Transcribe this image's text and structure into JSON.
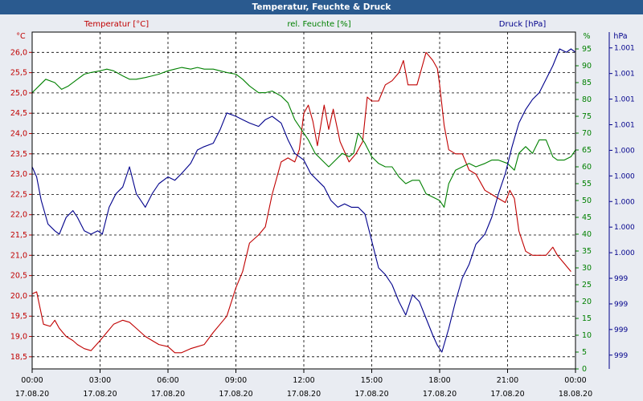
{
  "chart_data": {
    "type": "line",
    "title": "Temperatur, Feuchte & Druck",
    "x": {
      "ticks": [
        {
          "time": "00:00",
          "date": "17.08.20"
        },
        {
          "time": "03:00",
          "date": "17.08.20"
        },
        {
          "time": "06:00",
          "date": "17.08.20"
        },
        {
          "time": "09:00",
          "date": "17.08.20"
        },
        {
          "time": "12:00",
          "date": "17.08.20"
        },
        {
          "time": "15:00",
          "date": "17.08.20"
        },
        {
          "time": "18:00",
          "date": "17.08.20"
        },
        {
          "time": "21:00",
          "date": "17.08.20"
        },
        {
          "time": "00:00",
          "date": "18.08.20"
        }
      ],
      "range_hours": [
        0,
        24
      ]
    },
    "axes": {
      "temperature": {
        "label": "Temperatur [°C]",
        "unit": "°C",
        "color": "#c00000",
        "range": [
          18.2,
          26.5
        ],
        "ticks": [
          "26,0",
          "25,5",
          "25,0",
          "24,5",
          "24,0",
          "23,5",
          "23,0",
          "22,5",
          "22,0",
          "21,5",
          "21,0",
          "20,5",
          "20,0",
          "19,5",
          "19,0",
          "18,5"
        ],
        "tick_values": [
          26.0,
          25.5,
          25.0,
          24.5,
          24.0,
          23.5,
          23.0,
          22.5,
          22.0,
          21.5,
          21.0,
          20.5,
          20.0,
          19.5,
          19.0,
          18.5
        ]
      },
      "humidity": {
        "label": "rel. Feuchte [%]",
        "unit": "%",
        "color": "#008000",
        "range": [
          0,
          100
        ],
        "ticks": [
          "0",
          "5",
          "10",
          "15",
          "20",
          "25",
          "30",
          "35",
          "40",
          "45",
          "50",
          "55",
          "60",
          "65",
          "70",
          "75",
          "80",
          "85",
          "90",
          "95"
        ],
        "tick_values": [
          0,
          5,
          10,
          15,
          20,
          25,
          30,
          35,
          40,
          45,
          50,
          55,
          60,
          65,
          70,
          75,
          80,
          85,
          90,
          95
        ]
      },
      "pressure": {
        "label": "Druck [hPa]",
        "unit": "hPa",
        "color": "#00008b",
        "range": [
          0,
          100
        ],
        "ticks": [
          "1.001",
          "1.001",
          "1.001",
          "1.001",
          "1.000",
          "1.000",
          "1.000",
          "1.000",
          "1.000",
          "999",
          "999",
          "999",
          "999"
        ],
        "tick_values": [
          95.3,
          87.7,
          80.1,
          72.5,
          64.9,
          57.3,
          49.7,
          42.1,
          34.5,
          26.9,
          19.3,
          11.7,
          4.1
        ]
      }
    },
    "series": [
      {
        "name": "Temperatur",
        "axis": "temperature",
        "color": "#c00000",
        "points": [
          [
            0,
            20.05
          ],
          [
            0.2,
            20.1
          ],
          [
            0.5,
            19.3
          ],
          [
            0.8,
            19.25
          ],
          [
            1,
            19.4
          ],
          [
            1.2,
            19.2
          ],
          [
            1.5,
            19.0
          ],
          [
            1.8,
            18.9
          ],
          [
            2.0,
            18.8
          ],
          [
            2.3,
            18.7
          ],
          [
            2.6,
            18.65
          ],
          [
            3.0,
            18.9
          ],
          [
            3.3,
            19.1
          ],
          [
            3.6,
            19.3
          ],
          [
            4.0,
            19.4
          ],
          [
            4.3,
            19.35
          ],
          [
            4.6,
            19.2
          ],
          [
            5.0,
            19.0
          ],
          [
            5.3,
            18.9
          ],
          [
            5.6,
            18.8
          ],
          [
            6.0,
            18.75
          ],
          [
            6.3,
            18.6
          ],
          [
            6.6,
            18.6
          ],
          [
            7.0,
            18.7
          ],
          [
            7.3,
            18.75
          ],
          [
            7.6,
            18.8
          ],
          [
            8.0,
            19.1
          ],
          [
            8.3,
            19.3
          ],
          [
            8.6,
            19.5
          ],
          [
            9.0,
            20.2
          ],
          [
            9.3,
            20.6
          ],
          [
            9.6,
            21.3
          ],
          [
            10.0,
            21.5
          ],
          [
            10.3,
            21.7
          ],
          [
            10.6,
            22.5
          ],
          [
            11.0,
            23.3
          ],
          [
            11.3,
            23.4
          ],
          [
            11.6,
            23.3
          ],
          [
            11.8,
            23.6
          ],
          [
            12.0,
            24.5
          ],
          [
            12.2,
            24.7
          ],
          [
            12.4,
            24.3
          ],
          [
            12.6,
            23.7
          ],
          [
            12.9,
            24.7
          ],
          [
            13.1,
            24.1
          ],
          [
            13.3,
            24.6
          ],
          [
            13.6,
            23.8
          ],
          [
            14.0,
            23.3
          ],
          [
            14.3,
            23.5
          ],
          [
            14.6,
            23.8
          ],
          [
            14.8,
            24.9
          ],
          [
            15.0,
            24.8
          ],
          [
            15.3,
            24.8
          ],
          [
            15.6,
            25.2
          ],
          [
            15.9,
            25.3
          ],
          [
            16.2,
            25.5
          ],
          [
            16.4,
            25.8
          ],
          [
            16.6,
            25.2
          ],
          [
            16.8,
            25.2
          ],
          [
            17.0,
            25.2
          ],
          [
            17.2,
            25.6
          ],
          [
            17.4,
            26.0
          ],
          [
            17.7,
            25.8
          ],
          [
            17.9,
            25.6
          ],
          [
            18.0,
            25.2
          ],
          [
            18.2,
            24.2
          ],
          [
            18.4,
            23.6
          ],
          [
            18.7,
            23.5
          ],
          [
            19.0,
            23.5
          ],
          [
            19.3,
            23.1
          ],
          [
            19.6,
            23.0
          ],
          [
            20.0,
            22.6
          ],
          [
            20.3,
            22.5
          ],
          [
            20.6,
            22.4
          ],
          [
            20.9,
            22.3
          ],
          [
            21.1,
            22.6
          ],
          [
            21.3,
            22.4
          ],
          [
            21.5,
            21.6
          ],
          [
            21.8,
            21.1
          ],
          [
            22.1,
            21.0
          ],
          [
            22.4,
            21.0
          ],
          [
            22.7,
            21.0
          ],
          [
            23.0,
            21.2
          ],
          [
            23.2,
            21.0
          ],
          [
            23.5,
            20.8
          ],
          [
            23.8,
            20.6
          ]
        ]
      },
      {
        "name": "rel. Feuchte",
        "axis": "humidity",
        "color": "#008000",
        "points": [
          [
            0,
            82
          ],
          [
            0.3,
            84
          ],
          [
            0.6,
            86
          ],
          [
            1.0,
            85
          ],
          [
            1.3,
            83
          ],
          [
            1.6,
            84
          ],
          [
            2.0,
            86
          ],
          [
            2.3,
            87.5
          ],
          [
            2.6,
            88
          ],
          [
            3.0,
            88.5
          ],
          [
            3.3,
            89
          ],
          [
            3.6,
            88.5
          ],
          [
            4.0,
            87
          ],
          [
            4.3,
            86
          ],
          [
            4.6,
            86
          ],
          [
            5.0,
            86.5
          ],
          [
            5.3,
            87
          ],
          [
            5.6,
            87.5
          ],
          [
            6.0,
            88.5
          ],
          [
            6.3,
            89
          ],
          [
            6.6,
            89.5
          ],
          [
            7.0,
            89
          ],
          [
            7.3,
            89.5
          ],
          [
            7.6,
            89
          ],
          [
            8.0,
            89
          ],
          [
            8.3,
            88.5
          ],
          [
            8.6,
            88
          ],
          [
            9.0,
            87.5
          ],
          [
            9.3,
            86
          ],
          [
            9.6,
            84
          ],
          [
            10.0,
            82
          ],
          [
            10.3,
            82
          ],
          [
            10.6,
            82.5
          ],
          [
            11.0,
            81
          ],
          [
            11.3,
            79
          ],
          [
            11.6,
            74
          ],
          [
            12.0,
            70
          ],
          [
            12.2,
            68
          ],
          [
            12.5,
            64
          ],
          [
            12.8,
            62
          ],
          [
            13.1,
            60
          ],
          [
            13.4,
            62
          ],
          [
            13.7,
            64
          ],
          [
            14.0,
            63
          ],
          [
            14.2,
            64
          ],
          [
            14.4,
            70
          ],
          [
            14.7,
            67
          ],
          [
            15.0,
            63
          ],
          [
            15.3,
            61
          ],
          [
            15.6,
            60
          ],
          [
            15.9,
            60
          ],
          [
            16.2,
            57
          ],
          [
            16.5,
            55
          ],
          [
            16.8,
            56
          ],
          [
            17.1,
            56
          ],
          [
            17.4,
            52
          ],
          [
            17.7,
            51
          ],
          [
            18.0,
            50
          ],
          [
            18.2,
            48
          ],
          [
            18.4,
            55
          ],
          [
            18.7,
            59
          ],
          [
            19.0,
            60
          ],
          [
            19.3,
            61
          ],
          [
            19.6,
            60
          ],
          [
            20.0,
            61
          ],
          [
            20.3,
            62
          ],
          [
            20.6,
            62
          ],
          [
            21.0,
            61
          ],
          [
            21.3,
            59
          ],
          [
            21.5,
            64
          ],
          [
            21.8,
            66
          ],
          [
            22.1,
            64
          ],
          [
            22.4,
            68
          ],
          [
            22.7,
            68
          ],
          [
            23.0,
            63
          ],
          [
            23.2,
            62
          ],
          [
            23.5,
            62
          ],
          [
            23.8,
            63
          ],
          [
            24.0,
            65
          ]
        ]
      },
      {
        "name": "Druck",
        "axis": "pressure",
        "color": "#00008b",
        "points": [
          [
            0,
            60
          ],
          [
            0.2,
            57
          ],
          [
            0.4,
            50
          ],
          [
            0.7,
            43
          ],
          [
            1.0,
            41
          ],
          [
            1.2,
            40
          ],
          [
            1.5,
            45
          ],
          [
            1.8,
            47
          ],
          [
            2.0,
            45
          ],
          [
            2.3,
            41
          ],
          [
            2.6,
            40
          ],
          [
            2.9,
            41
          ],
          [
            3.1,
            40
          ],
          [
            3.4,
            48
          ],
          [
            3.7,
            52
          ],
          [
            4.0,
            54
          ],
          [
            4.3,
            60
          ],
          [
            4.6,
            52
          ],
          [
            5.0,
            48
          ],
          [
            5.3,
            52
          ],
          [
            5.6,
            55
          ],
          [
            6.0,
            57
          ],
          [
            6.3,
            56
          ],
          [
            6.6,
            58
          ],
          [
            7.0,
            61
          ],
          [
            7.3,
            65
          ],
          [
            7.6,
            66
          ],
          [
            8.0,
            67
          ],
          [
            8.3,
            71
          ],
          [
            8.6,
            76
          ],
          [
            9.0,
            75
          ],
          [
            9.3,
            74
          ],
          [
            9.6,
            73
          ],
          [
            10.0,
            72
          ],
          [
            10.3,
            74
          ],
          [
            10.6,
            75
          ],
          [
            11.0,
            73
          ],
          [
            11.3,
            68
          ],
          [
            11.6,
            64
          ],
          [
            12.0,
            62
          ],
          [
            12.3,
            58
          ],
          [
            12.6,
            56
          ],
          [
            12.9,
            54
          ],
          [
            13.2,
            50
          ],
          [
            13.5,
            48
          ],
          [
            13.8,
            49
          ],
          [
            14.1,
            48
          ],
          [
            14.4,
            48
          ],
          [
            14.7,
            46
          ],
          [
            15.0,
            38
          ],
          [
            15.3,
            30
          ],
          [
            15.6,
            28
          ],
          [
            15.9,
            25
          ],
          [
            16.2,
            20
          ],
          [
            16.5,
            16
          ],
          [
            16.8,
            22
          ],
          [
            17.1,
            20
          ],
          [
            17.4,
            15
          ],
          [
            17.7,
            10
          ],
          [
            17.9,
            7
          ],
          [
            18.1,
            5
          ],
          [
            18.4,
            12
          ],
          [
            18.7,
            20
          ],
          [
            19.0,
            27
          ],
          [
            19.3,
            31
          ],
          [
            19.6,
            37
          ],
          [
            20.0,
            40
          ],
          [
            20.3,
            45
          ],
          [
            20.6,
            52
          ],
          [
            20.9,
            58
          ],
          [
            21.2,
            66
          ],
          [
            21.5,
            73
          ],
          [
            21.8,
            77
          ],
          [
            22.1,
            80
          ],
          [
            22.4,
            82
          ],
          [
            22.7,
            86
          ],
          [
            23.0,
            90
          ],
          [
            23.3,
            95
          ],
          [
            23.6,
            94
          ],
          [
            23.8,
            95
          ],
          [
            24.0,
            94
          ]
        ]
      }
    ]
  }
}
